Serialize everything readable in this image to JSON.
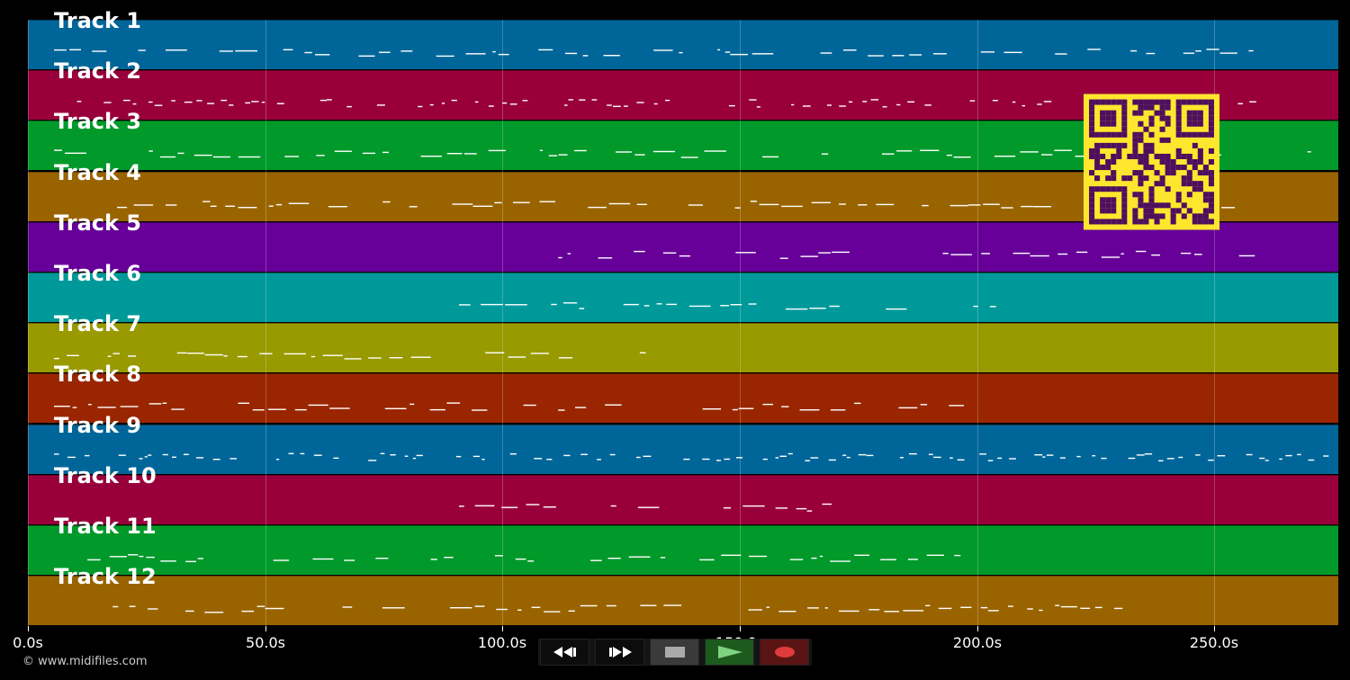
{
  "tracks": [
    {
      "label": "Track 1",
      "color": "#006699"
    },
    {
      "label": "Track 2",
      "color": "#99003b"
    },
    {
      "label": "Track 3",
      "color": "#00992a"
    },
    {
      "label": "Track 4",
      "color": "#996400"
    },
    {
      "label": "Track 5",
      "color": "#660099"
    },
    {
      "label": "Track 6",
      "color": "#009999"
    },
    {
      "label": "Track 7",
      "color": "#999900"
    },
    {
      "label": "Track 8",
      "color": "#992600"
    },
    {
      "label": "Track 9",
      "color": "#006699"
    },
    {
      "label": "Track 10",
      "color": "#99003b"
    },
    {
      "label": "Track 11",
      "color": "#00992a"
    },
    {
      "label": "Track 12",
      "color": "#996400"
    }
  ],
  "timeline": {
    "ticks": [
      "0.0s",
      "50.0s",
      "100.0s",
      "150.0s",
      "200.0s",
      "250.0s"
    ]
  },
  "transport": {
    "buttons": [
      {
        "name": "rewind",
        "icon": "rewind-icon"
      },
      {
        "name": "fast-forward",
        "icon": "fast-forward-icon"
      },
      {
        "name": "stop",
        "icon": "stop-icon"
      },
      {
        "name": "play",
        "icon": "play-icon"
      },
      {
        "name": "record",
        "icon": "record-icon"
      }
    ]
  },
  "footer": {
    "copyright": "© www.midifiles.com"
  },
  "qr": {
    "icon": "qr-code-icon",
    "fg": "#4d0f5e",
    "bg": "#ffe62e"
  }
}
